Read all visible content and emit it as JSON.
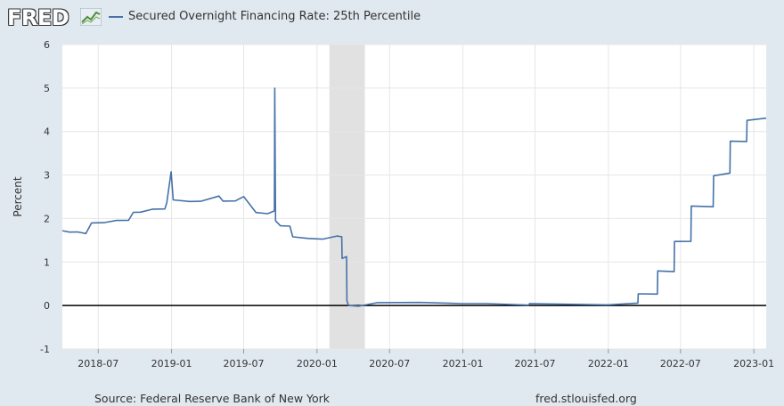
{
  "header": {
    "logo_text": "FRED",
    "logo_icon": "line-chart-icon",
    "legend_label": "Secured Overnight Financing Rate: 25th Percentile",
    "legend_color": "#4572a7"
  },
  "footer": {
    "source": "Source: Federal Reserve Bank of New York",
    "site": "fred.stlouisfed.org"
  },
  "colors": {
    "background": "#e1e9f0",
    "plot_background": "#ffffff",
    "series": "#4572a7",
    "recession": "#e1e1e1",
    "zero_line": "#000000"
  },
  "chart_data": {
    "type": "line",
    "ylabel": "Percent",
    "ylim": [
      -1,
      6
    ],
    "yticks": [
      -1,
      0,
      1,
      2,
      3,
      4,
      5,
      6
    ],
    "xlim": [
      "2018-04-02",
      "2023-02-01"
    ],
    "xticks": [
      "2018-07",
      "2019-01",
      "2019-07",
      "2020-01",
      "2020-07",
      "2021-01",
      "2021-07",
      "2022-01",
      "2022-07",
      "2023-01"
    ],
    "grid": true,
    "legend": "top-left",
    "recession_shading": [
      [
        "2020-02-01",
        "2020-04-30"
      ]
    ],
    "series": [
      {
        "name": "Secured Overnight Financing Rate: 25th Percentile",
        "points": [
          [
            "2018-04-02",
            1.72
          ],
          [
            "2018-04-20",
            1.68
          ],
          [
            "2018-05-10",
            1.7
          ],
          [
            "2018-05-31",
            1.68
          ],
          [
            "2018-06-14",
            1.88
          ],
          [
            "2018-06-20",
            1.9
          ],
          [
            "2018-07-15",
            1.92
          ],
          [
            "2018-08-15",
            1.93
          ],
          [
            "2018-09-15",
            1.95
          ],
          [
            "2018-09-27",
            2.15
          ],
          [
            "2018-10-15",
            2.17
          ],
          [
            "2018-11-15",
            2.2
          ],
          [
            "2018-12-15",
            2.22
          ],
          [
            "2018-12-20",
            2.38
          ],
          [
            "2018-12-31",
            3.05
          ],
          [
            "2019-01-05",
            2.42
          ],
          [
            "2019-02-15",
            2.4
          ],
          [
            "2019-03-15",
            2.42
          ],
          [
            "2019-04-30",
            2.5
          ],
          [
            "2019-05-10",
            2.4
          ],
          [
            "2019-06-10",
            2.42
          ],
          [
            "2019-07-01",
            2.48
          ],
          [
            "2019-08-01",
            2.13
          ],
          [
            "2019-08-30",
            2.12
          ],
          [
            "2019-09-16",
            2.2
          ],
          [
            "2019-09-17",
            4.98
          ],
          [
            "2019-09-19",
            1.95
          ],
          [
            "2019-10-01",
            1.85
          ],
          [
            "2019-10-25",
            1.8
          ],
          [
            "2019-11-01",
            1.57
          ],
          [
            "2019-12-10",
            1.55
          ],
          [
            "2020-01-15",
            1.55
          ],
          [
            "2020-02-20",
            1.58
          ],
          [
            "2020-03-03",
            1.58
          ],
          [
            "2020-03-04",
            1.1
          ],
          [
            "2020-03-15",
            1.1
          ],
          [
            "2020-03-16",
            0.1
          ],
          [
            "2020-03-20",
            0.01
          ],
          [
            "2020-04-15",
            0.01
          ],
          [
            "2020-06-01",
            0.05
          ],
          [
            "2020-09-15",
            0.07
          ],
          [
            "2020-12-31",
            0.06
          ],
          [
            "2021-03-01",
            0.02
          ],
          [
            "2021-06-15",
            0.0
          ],
          [
            "2021-06-17",
            0.05
          ],
          [
            "2021-12-31",
            0.04
          ],
          [
            "2022-03-16",
            0.04
          ],
          [
            "2022-03-17",
            0.27
          ],
          [
            "2022-05-04",
            0.28
          ],
          [
            "2022-05-05",
            0.77
          ],
          [
            "2022-06-15",
            0.77
          ],
          [
            "2022-06-16",
            1.48
          ],
          [
            "2022-07-27",
            1.5
          ],
          [
            "2022-07-28",
            2.27
          ],
          [
            "2022-09-21",
            2.27
          ],
          [
            "2022-09-22",
            3.0
          ],
          [
            "2022-11-02",
            3.02
          ],
          [
            "2022-11-03",
            3.77
          ],
          [
            "2022-12-14",
            3.78
          ],
          [
            "2022-12-15",
            4.28
          ],
          [
            "2023-02-01",
            4.29
          ]
        ]
      }
    ]
  }
}
